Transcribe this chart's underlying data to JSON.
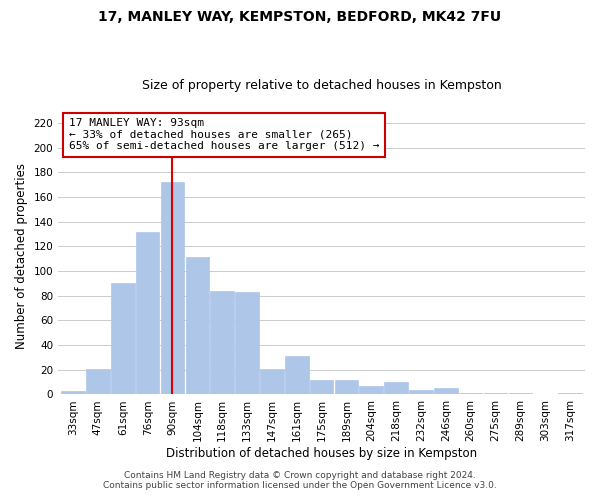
{
  "title": "17, MANLEY WAY, KEMPSTON, BEDFORD, MK42 7FU",
  "subtitle": "Size of property relative to detached houses in Kempston",
  "xlabel": "Distribution of detached houses by size in Kempston",
  "ylabel": "Number of detached properties",
  "bar_labels": [
    "33sqm",
    "47sqm",
    "61sqm",
    "76sqm",
    "90sqm",
    "104sqm",
    "118sqm",
    "133sqm",
    "147sqm",
    "161sqm",
    "175sqm",
    "189sqm",
    "204sqm",
    "218sqm",
    "232sqm",
    "246sqm",
    "260sqm",
    "275sqm",
    "289sqm",
    "303sqm",
    "317sqm"
  ],
  "bar_values": [
    3,
    21,
    90,
    132,
    172,
    111,
    84,
    83,
    21,
    31,
    12,
    12,
    7,
    10,
    4,
    5,
    1,
    1,
    1,
    0,
    1
  ],
  "bar_color": "#aec6e8",
  "bar_edge_color": "#aec6e8",
  "vline_x": 4,
  "vline_color": "#dd0000",
  "annotation_line1": "17 MANLEY WAY: 93sqm",
  "annotation_line2": "← 33% of detached houses are smaller (265)",
  "annotation_line3": "65% of semi-detached houses are larger (512) →",
  "annotation_box_color": "#ffffff",
  "annotation_box_edge": "#cc0000",
  "ylim": [
    0,
    225
  ],
  "yticks": [
    0,
    20,
    40,
    60,
    80,
    100,
    120,
    140,
    160,
    180,
    200,
    220
  ],
  "footer_line1": "Contains HM Land Registry data © Crown copyright and database right 2024.",
  "footer_line2": "Contains public sector information licensed under the Open Government Licence v3.0.",
  "bg_color": "#ffffff",
  "grid_color": "#cccccc",
  "title_fontsize": 10,
  "subtitle_fontsize": 9,
  "axis_label_fontsize": 8.5,
  "tick_fontsize": 7.5,
  "annotation_fontsize": 8,
  "footer_fontsize": 6.5
}
